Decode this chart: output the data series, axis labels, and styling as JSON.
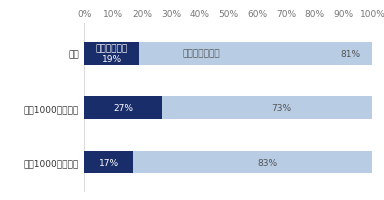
{
  "categories": [
    "全体",
    "年収1000万円以上",
    "年収1000万円未満"
  ],
  "satisfied": [
    19,
    27,
    17
  ],
  "unsatisfied": [
    81,
    73,
    83
  ],
  "satisfied_label": "満足している",
  "unsatisfied_label": "満足していない",
  "color_satisfied": "#1a2d6b",
  "color_unsatisfied": "#b8cce4",
  "xlim": [
    0,
    100
  ],
  "xticks": [
    0,
    10,
    20,
    30,
    40,
    50,
    60,
    70,
    80,
    90,
    100
  ],
  "background_color": "#ffffff",
  "bar_height": 0.42,
  "fontsize_tick": 6.5,
  "fontsize_label": 6.5,
  "fontsize_bar": 6.5,
  "text_color_dark": "#555555",
  "text_color_light": "#ffffff"
}
